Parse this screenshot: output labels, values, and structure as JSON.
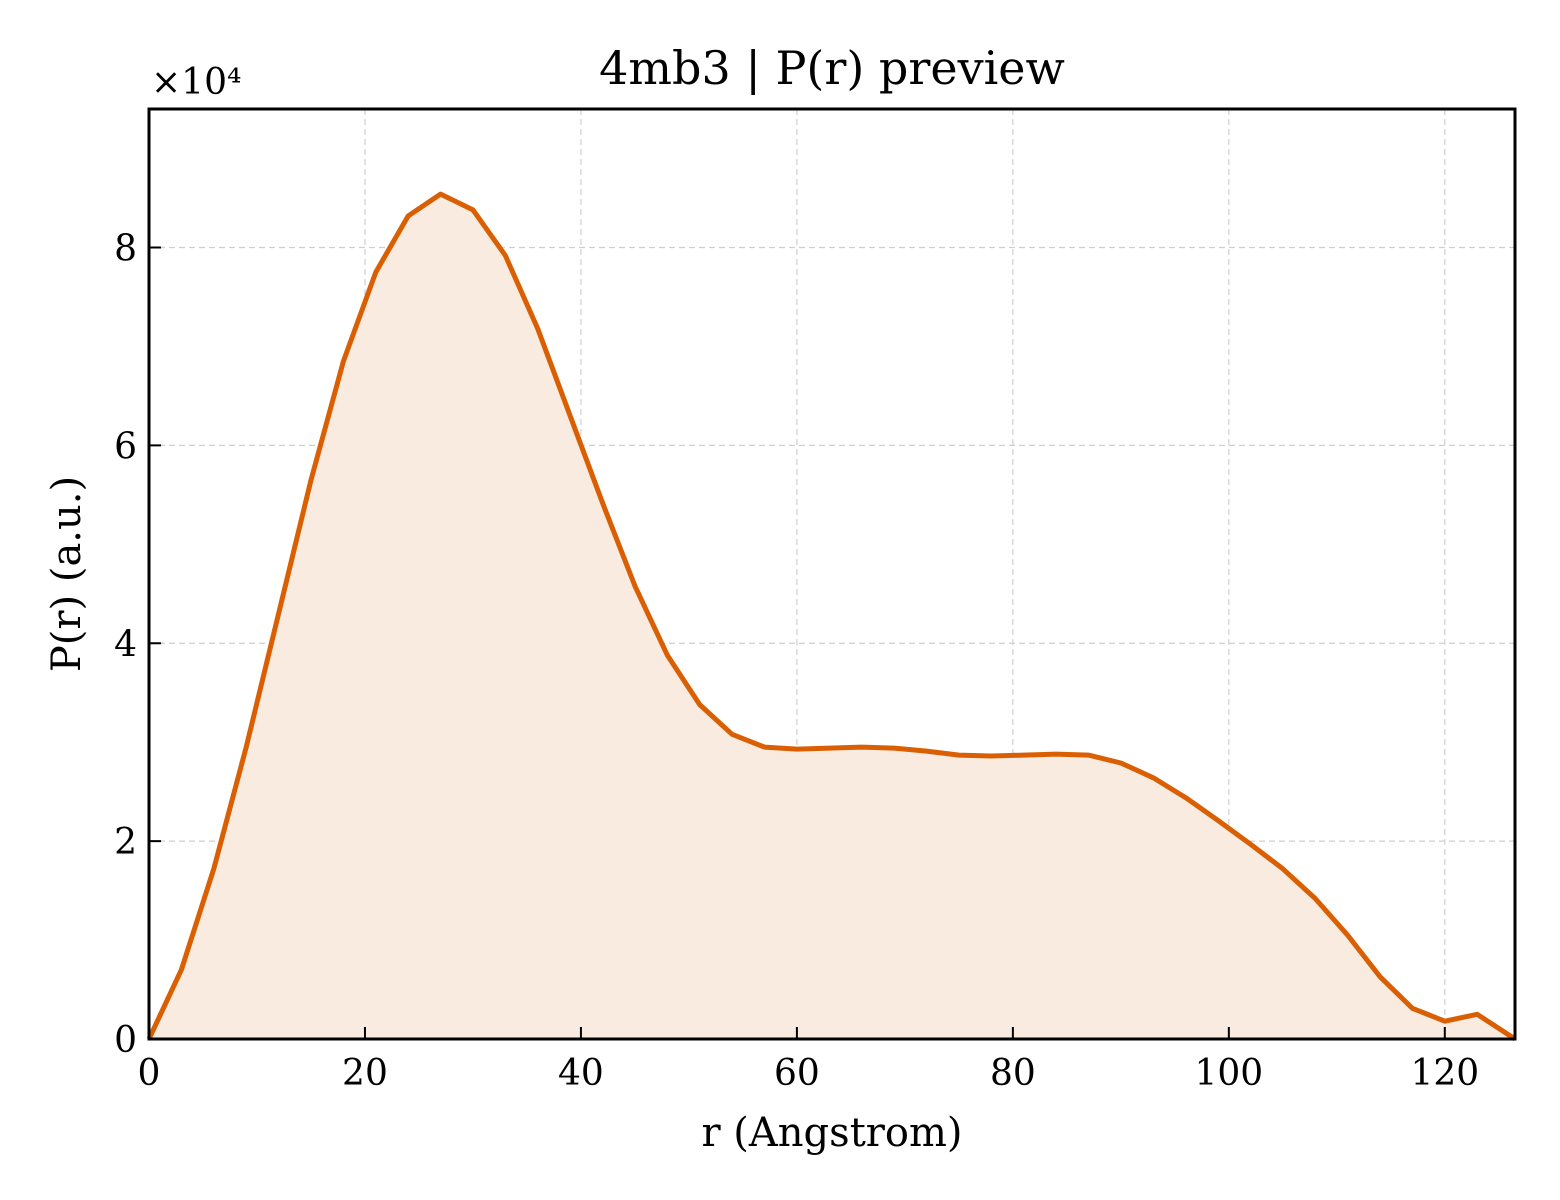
{
  "chart_data": {
    "type": "area",
    "title": "4mb3 | P(r) preview",
    "xlabel": "r (Angstrom)",
    "ylabel": "P(r) (a.u.)",
    "y_offset_label": "×10⁴",
    "xlim": [
      0,
      126.5
    ],
    "ylim": [
      0,
      9.4
    ],
    "x_ticks": [
      0,
      20,
      40,
      60,
      80,
      100,
      120
    ],
    "y_ticks": [
      0,
      2,
      4,
      6,
      8
    ],
    "grid": true,
    "colors": {
      "line": "#d95f02",
      "fill": "#f9ebe0"
    },
    "series": [
      {
        "x": [
          0,
          3,
          6,
          9,
          12,
          15,
          18,
          21,
          24,
          27,
          30,
          33,
          36,
          39,
          42,
          45,
          48,
          51,
          54,
          57,
          60,
          63,
          66,
          69,
          72,
          75,
          78,
          81,
          84,
          87,
          90,
          93,
          96,
          99,
          102,
          105,
          108,
          111,
          114,
          117,
          120,
          123,
          126.5
        ],
        "y": [
          0,
          0.7,
          1.72,
          2.95,
          4.3,
          5.65,
          6.85,
          7.75,
          8.32,
          8.54,
          8.38,
          7.92,
          7.18,
          6.3,
          5.42,
          4.58,
          3.88,
          3.38,
          3.08,
          2.95,
          2.93,
          2.94,
          2.95,
          2.94,
          2.91,
          2.87,
          2.86,
          2.87,
          2.88,
          2.87,
          2.79,
          2.64,
          2.44,
          2.21,
          1.97,
          1.72,
          1.42,
          1.05,
          0.63,
          0.31,
          0.18,
          0.25,
          0
        ]
      }
    ]
  }
}
